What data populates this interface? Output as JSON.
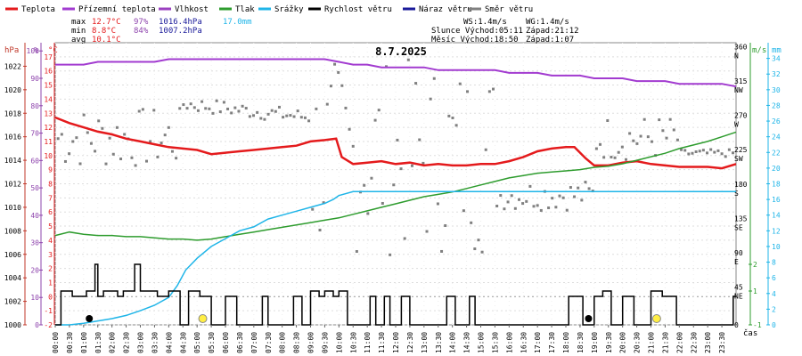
{
  "legend": [
    {
      "label": "Teplota",
      "color": "#e41a1c"
    },
    {
      "label": "Přízemní teplota",
      "color": "#a23bd0"
    },
    {
      "label": "Vlhkost",
      "color": "#9b41c0"
    },
    {
      "label": "Tlak",
      "color": "#2e9c2e"
    },
    {
      "label": "Srážky",
      "color": "#1fb5e8"
    },
    {
      "label": "Rychlost větru",
      "color": "#000000"
    },
    {
      "label": "Náraz větru",
      "color": "#1a1a9a"
    },
    {
      "label": "Směr větru",
      "color": "#808080"
    }
  ],
  "stats": {
    "max_label": "max",
    "max_temp": "12.7°C",
    "max_hum": "97%",
    "max_press": "1016.4hPa",
    "max_rain": "17.0mm",
    "min_label": "min",
    "min_temp": "8.8°C",
    "min_hum": "84%",
    "min_press": "1007.2hPa",
    "avg_label": "avg",
    "avg_temp": "10.1°C"
  },
  "astro": {
    "ws": "WS:1.4m/s",
    "wg": "WG:1.4m/s",
    "sun_rise": "Slunce Východ:05:11",
    "sun_set": "Západ:21:12",
    "moon_rise": "Měsíc Východ:18:50",
    "moon_set": "Západ:1:07"
  },
  "date": "8.7.2025",
  "axis_units": {
    "hpa": "hPa",
    "pct": "%",
    "temp": "°C",
    "ms": "m/s",
    "mm": "mm",
    "time": "čas"
  },
  "colors": {
    "temp": "#e41a1c",
    "ground": "#a23bd0",
    "press": "#2e9c2e",
    "rain": "#1fb5e8",
    "wind": "#000000",
    "dir": "#808080",
    "axis_hpa": "#c0392b",
    "axis_pct": "#8e44ad",
    "axis_temp": "#e41a1c",
    "axis_ms": "#2e9c2e",
    "axis_mm": "#1fb5e8",
    "sun": "#ffee44"
  },
  "chart_data": {
    "type": "line",
    "x_unit": "time (hh:mm), 8.7.2025",
    "x_ticks": [
      "00:00",
      "00:30",
      "01:00",
      "01:30",
      "02:00",
      "02:30",
      "03:00",
      "03:30",
      "04:00",
      "04:30",
      "05:00",
      "05:30",
      "06:00",
      "06:30",
      "07:00",
      "07:30",
      "08:00",
      "08:30",
      "09:00",
      "09:30",
      "10:00",
      "10:30",
      "11:00",
      "11:30",
      "12:00",
      "12:30",
      "13:00",
      "13:30",
      "14:00",
      "14:30",
      "15:00",
      "15:30",
      "16:00",
      "16:30",
      "17:00",
      "17:30",
      "18:00",
      "18:30",
      "19:00",
      "19:30",
      "20:00",
      "20:30",
      "21:00",
      "21:30",
      "22:00",
      "22:30",
      "23:00",
      "23:30"
    ],
    "axes": {
      "pressure_hpa": {
        "ticks": [
          1000,
          1002,
          1004,
          1006,
          1008,
          1010,
          1012,
          1014,
          1016,
          1018,
          1020,
          1022
        ],
        "range": [
          1000,
          1024
        ]
      },
      "humidity_pct": {
        "ticks": [
          0,
          10,
          20,
          30,
          40,
          50,
          60,
          70,
          80,
          90,
          100
        ],
        "range": [
          0,
          103
        ]
      },
      "temperature_c": {
        "ticks": [
          -2,
          -1,
          0,
          1,
          2,
          3,
          4,
          5,
          6,
          7,
          8,
          9,
          10,
          11,
          12,
          13,
          14,
          15,
          16,
          17
        ],
        "range": [
          -2,
          18
        ]
      },
      "wind_dir": {
        "ticks": [
          {
            "v": 0,
            "l": "0"
          },
          {
            "v": 45,
            "l": "45 NE"
          },
          {
            "v": 90,
            "l": "90 E"
          },
          {
            "v": 135,
            "l": "135 SE"
          },
          {
            "v": 180,
            "l": "180 S"
          },
          {
            "v": 225,
            "l": "225 SW"
          },
          {
            "v": 270,
            "l": "270 W"
          },
          {
            "v": 315,
            "l": "315 NW"
          },
          {
            "v": 360,
            "l": "360 N"
          }
        ],
        "range": [
          0,
          370
        ]
      },
      "wind_ms": {
        "ticks": [
          {
            "v": -1,
            "l": "-1"
          },
          {
            "v": 1,
            "l": "1"
          },
          {
            "v": 2,
            "l": "2"
          }
        ]
      },
      "rain_mm": {
        "ticks": [
          0,
          2,
          4,
          6,
          8,
          10,
          12,
          14,
          16,
          18,
          20,
          22,
          24,
          26,
          28,
          30,
          32,
          34
        ],
        "range": [
          0,
          36
        ]
      }
    },
    "series": [
      {
        "name": "Teplota",
        "unit": "°C",
        "x": [
          0,
          0.5,
          1,
          1.5,
          2,
          2.5,
          3,
          3.5,
          4,
          4.5,
          5,
          5.5,
          6,
          6.5,
          7,
          7.5,
          8,
          8.5,
          9,
          9.5,
          9.9,
          10.1,
          10.5,
          11,
          11.5,
          12,
          12.5,
          13,
          13.5,
          14,
          14.5,
          15,
          15.5,
          16,
          16.5,
          17,
          17.5,
          18,
          18.3,
          18.7,
          19,
          19.5,
          20,
          20.5,
          21,
          21.5,
          22,
          22.5,
          23,
          23.5,
          24
        ],
        "values": [
          12.7,
          12.3,
          12.0,
          11.7,
          11.5,
          11.2,
          11.0,
          10.8,
          10.6,
          10.5,
          10.4,
          10.1,
          10.2,
          10.3,
          10.4,
          10.5,
          10.6,
          10.7,
          11.0,
          11.1,
          11.2,
          9.9,
          9.4,
          9.5,
          9.6,
          9.4,
          9.5,
          9.3,
          9.4,
          9.3,
          9.3,
          9.4,
          9.4,
          9.6,
          9.9,
          10.3,
          10.5,
          10.6,
          10.6,
          9.8,
          9.3,
          9.3,
          9.5,
          9.6,
          9.4,
          9.3,
          9.2,
          9.2,
          9.2,
          9.1,
          9.4
        ]
      },
      {
        "name": "Vlhkost",
        "unit": "%",
        "x": [
          0,
          0.5,
          1,
          1.5,
          2,
          2.5,
          3,
          3.5,
          4,
          4.5,
          5,
          5.5,
          6,
          6.5,
          7,
          7.5,
          8,
          8.5,
          9,
          9.5,
          10,
          10.5,
          11,
          11.5,
          12,
          12.5,
          13,
          13.5,
          14,
          14.5,
          15,
          15.5,
          16,
          16.5,
          17,
          17.5,
          18,
          18.5,
          19,
          19.5,
          20,
          20.5,
          21,
          21.5,
          22,
          22.5,
          23,
          23.5,
          24
        ],
        "values": [
          95,
          95,
          95,
          96,
          96,
          96,
          96,
          96,
          97,
          97,
          97,
          97,
          97,
          97,
          97,
          97,
          97,
          97,
          97,
          97,
          96,
          95,
          95,
          94,
          94,
          94,
          94,
          93,
          93,
          93,
          93,
          93,
          92,
          92,
          92,
          91,
          91,
          91,
          90,
          90,
          90,
          89,
          89,
          89,
          88,
          88,
          88,
          88,
          87
        ]
      },
      {
        "name": "Tlak",
        "unit": "hPa",
        "x": [
          0,
          0.5,
          1,
          1.5,
          2,
          2.5,
          3,
          3.5,
          4,
          4.5,
          5,
          5.5,
          6,
          6.5,
          7,
          7.5,
          8,
          8.5,
          9,
          9.5,
          10,
          10.5,
          11,
          11.5,
          12,
          12.5,
          13,
          13.5,
          14,
          14.5,
          15,
          15.5,
          16,
          16.5,
          17,
          17.5,
          18,
          18.5,
          19,
          19.5,
          20,
          20.5,
          21,
          21.5,
          22,
          22.5,
          23,
          23.5,
          24
        ],
        "values": [
          1007.6,
          1007.9,
          1007.7,
          1007.6,
          1007.6,
          1007.5,
          1007.5,
          1007.4,
          1007.3,
          1007.3,
          1007.2,
          1007.3,
          1007.5,
          1007.7,
          1007.9,
          1008.1,
          1008.3,
          1008.5,
          1008.7,
          1008.9,
          1009.1,
          1009.4,
          1009.7,
          1010.0,
          1010.3,
          1010.6,
          1010.9,
          1011.1,
          1011.3,
          1011.6,
          1011.9,
          1012.2,
          1012.5,
          1012.7,
          1012.9,
          1013.0,
          1013.1,
          1013.2,
          1013.4,
          1013.5,
          1013.7,
          1014.0,
          1014.3,
          1014.6,
          1015.0,
          1015.3,
          1015.6,
          1016.0,
          1016.4
        ]
      },
      {
        "name": "Srážky",
        "unit": "mm",
        "x": [
          0,
          0.5,
          1,
          1.5,
          2,
          2.5,
          3,
          3.5,
          4,
          4.3,
          4.6,
          5,
          5.5,
          6,
          6.5,
          7,
          7.5,
          8,
          8.5,
          9,
          9.5,
          9.8,
          10,
          10.5,
          11,
          11.5,
          12,
          13,
          14,
          15,
          16,
          17,
          18,
          19,
          20,
          21,
          22,
          23,
          24
        ],
        "values": [
          0,
          0,
          0.2,
          0.5,
          0.8,
          1.2,
          1.8,
          2.5,
          3.5,
          5.0,
          7.0,
          8.5,
          10.0,
          11.0,
          12.0,
          12.5,
          13.5,
          14.0,
          14.5,
          15.0,
          15.5,
          16.0,
          16.5,
          17.0,
          17.0,
          17.0,
          17.0,
          17.0,
          17.0,
          17.0,
          17.0,
          17.0,
          17.0,
          17.0,
          17.0,
          17.0,
          17.0,
          17.0,
          17.0
        ]
      },
      {
        "name": "Rychlost větru",
        "unit": "level",
        "steps": [
          [
            0,
            -1
          ],
          [
            0.2,
            -1
          ],
          [
            0.2,
            1
          ],
          [
            0.6,
            1
          ],
          [
            0.6,
            0
          ],
          [
            1.1,
            0
          ],
          [
            1.1,
            1
          ],
          [
            1.4,
            1
          ],
          [
            1.4,
            2
          ],
          [
            1.5,
            2
          ],
          [
            1.5,
            0
          ],
          [
            1.7,
            0
          ],
          [
            1.7,
            1
          ],
          [
            2.2,
            1
          ],
          [
            2.2,
            0
          ],
          [
            2.4,
            0
          ],
          [
            2.4,
            1
          ],
          [
            2.8,
            1
          ],
          [
            2.8,
            2
          ],
          [
            3.0,
            2
          ],
          [
            3.0,
            1
          ],
          [
            3.6,
            1
          ],
          [
            3.6,
            0
          ],
          [
            4.0,
            0
          ],
          [
            4.0,
            1
          ],
          [
            4.4,
            1
          ],
          [
            4.4,
            -1
          ],
          [
            4.7,
            -1
          ],
          [
            4.7,
            1
          ],
          [
            5.1,
            1
          ],
          [
            5.1,
            0
          ],
          [
            5.5,
            0
          ],
          [
            5.5,
            -1
          ],
          [
            6.0,
            -1
          ],
          [
            6.0,
            0
          ],
          [
            6.4,
            0
          ],
          [
            6.4,
            -1
          ],
          [
            7.3,
            -1
          ],
          [
            7.3,
            0
          ],
          [
            7.5,
            0
          ],
          [
            7.5,
            -1
          ],
          [
            8.4,
            -1
          ],
          [
            8.4,
            0
          ],
          [
            8.7,
            0
          ],
          [
            8.7,
            -1
          ],
          [
            9.0,
            -1
          ],
          [
            9.0,
            1
          ],
          [
            9.3,
            1
          ],
          [
            9.3,
            0
          ],
          [
            9.5,
            0
          ],
          [
            9.5,
            1
          ],
          [
            9.8,
            1
          ],
          [
            9.8,
            0
          ],
          [
            10.0,
            0
          ],
          [
            10.0,
            1
          ],
          [
            10.3,
            1
          ],
          [
            10.3,
            -1
          ],
          [
            11.1,
            -1
          ],
          [
            11.1,
            0
          ],
          [
            11.3,
            0
          ],
          [
            11.3,
            -1
          ],
          [
            11.6,
            -1
          ],
          [
            11.6,
            0
          ],
          [
            11.8,
            0
          ],
          [
            11.8,
            -1
          ],
          [
            12.2,
            -1
          ],
          [
            12.2,
            0
          ],
          [
            12.5,
            0
          ],
          [
            12.5,
            -1
          ],
          [
            13.8,
            -1
          ],
          [
            13.8,
            0
          ],
          [
            14.1,
            0
          ],
          [
            14.1,
            -1
          ],
          [
            14.6,
            -1
          ],
          [
            14.6,
            0
          ],
          [
            14.8,
            0
          ],
          [
            14.8,
            -1
          ],
          [
            18.1,
            -1
          ],
          [
            18.1,
            0
          ],
          [
            18.6,
            0
          ],
          [
            18.6,
            -1
          ],
          [
            19.0,
            -1
          ],
          [
            19.0,
            0
          ],
          [
            19.3,
            0
          ],
          [
            19.3,
            1
          ],
          [
            19.6,
            1
          ],
          [
            19.6,
            -1
          ],
          [
            20.0,
            -1
          ],
          [
            20.0,
            0
          ],
          [
            20.4,
            0
          ],
          [
            20.4,
            -1
          ],
          [
            21.0,
            -1
          ],
          [
            21.0,
            1
          ],
          [
            21.4,
            1
          ],
          [
            21.4,
            0
          ],
          [
            21.9,
            0
          ],
          [
            21.9,
            -1
          ],
          [
            23.9,
            -1
          ],
          [
            23.9,
            0
          ],
          [
            24,
            0
          ]
        ]
      }
    ]
  }
}
